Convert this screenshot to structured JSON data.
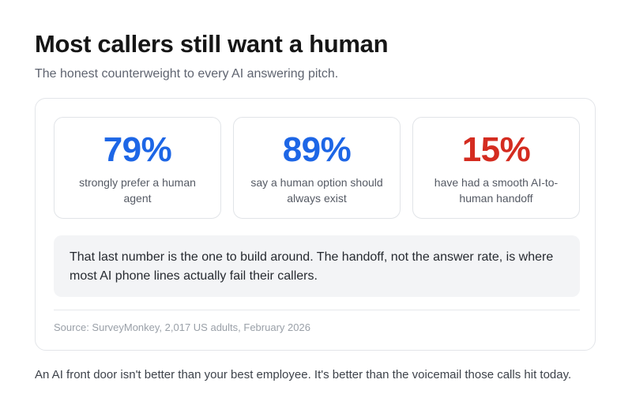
{
  "header": {
    "title": "Most callers still want a human",
    "subtitle": "The honest counterweight to every AI answering pitch."
  },
  "stats": [
    {
      "value": "79%",
      "label": "strongly prefer a human agent",
      "color": "#1d66e6"
    },
    {
      "value": "89%",
      "label": "say a human option should always exist",
      "color": "#1d66e6"
    },
    {
      "value": "15%",
      "label": "have had a smooth AI-to-human handoff",
      "color": "#d42c20"
    }
  ],
  "callout": {
    "text": "That last number is the one to build around. The handoff, not the answer rate, is where most AI phone lines actually fail their callers."
  },
  "source": {
    "text": "Source: SurveyMonkey, 2,017 US adults, February 2026"
  },
  "footer": {
    "text": "An AI front door isn't better than your best employee. It's better than the voicemail those calls hit today."
  }
}
